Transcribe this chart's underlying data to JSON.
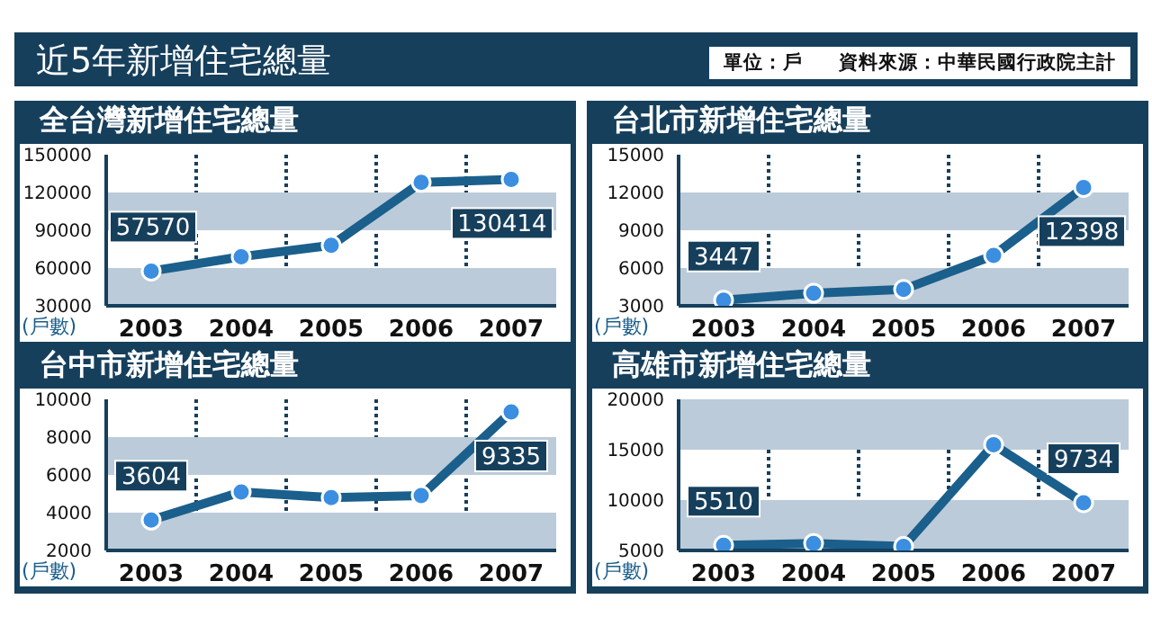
{
  "chart_data": [
    {
      "type": "other",
      "title": "近5年新增住宅總量",
      "annotations": [
        "單位：戶",
        "資料來源：中華民國行政院主計"
      ]
    },
    {
      "type": "line",
      "title": "全台灣新增住宅總量",
      "ylabel": "(戶數)",
      "categories": [
        "2003",
        "2004",
        "2005",
        "2006",
        "2007"
      ],
      "series": [
        {
          "color": "#1b5f8c",
          "values": [
            57570,
            69000,
            78000,
            128000,
            130414
          ],
          "value_labels": [
            "57570",
            null,
            null,
            null,
            "130414"
          ]
        }
      ],
      "ylim": [
        30000,
        150000
      ],
      "yticks": [
        30000,
        60000,
        90000,
        120000,
        150000
      ],
      "grid": "x",
      "marker": "circle",
      "legend": false,
      "bands": [
        {
          "axis": "y",
          "from": 30000,
          "to": 60000,
          "color": "#bccbd9"
        },
        {
          "axis": "y",
          "from": 90000,
          "to": 120000,
          "color": "#bccbd9"
        }
      ]
    },
    {
      "type": "line",
      "title": "台北市新增住宅總量",
      "ylabel": "(戶數)",
      "categories": [
        "2003",
        "2004",
        "2005",
        "2006",
        "2007"
      ],
      "series": [
        {
          "color": "#1b5f8c",
          "values": [
            3447,
            4000,
            4300,
            7000,
            12398
          ],
          "value_labels": [
            "3447",
            null,
            null,
            null,
            "12398"
          ]
        }
      ],
      "ylim": [
        3000,
        15000
      ],
      "yticks": [
        3000,
        6000,
        9000,
        12000,
        15000
      ],
      "grid": "x",
      "marker": "circle",
      "legend": false,
      "bands": [
        {
          "axis": "y",
          "from": 3000,
          "to": 6000,
          "color": "#bccbd9"
        },
        {
          "axis": "y",
          "from": 9000,
          "to": 12000,
          "color": "#bccbd9"
        }
      ]
    },
    {
      "type": "line",
      "title": "台中市新增住宅總量",
      "ylabel": "(戶數)",
      "categories": [
        "2003",
        "2004",
        "2005",
        "2006",
        "2007"
      ],
      "series": [
        {
          "color": "#1b5f8c",
          "values": [
            3604,
            5100,
            4800,
            4900,
            9335
          ],
          "value_labels": [
            "3604",
            null,
            null,
            null,
            "9335"
          ]
        }
      ],
      "ylim": [
        2000,
        10000
      ],
      "yticks": [
        2000,
        4000,
        6000,
        8000,
        10000
      ],
      "grid": "x",
      "marker": "circle",
      "legend": false,
      "bands": [
        {
          "axis": "y",
          "from": 2000,
          "to": 4000,
          "color": "#bccbd9"
        },
        {
          "axis": "y",
          "from": 6000,
          "to": 8000,
          "color": "#bccbd9"
        }
      ]
    },
    {
      "type": "line",
      "title": "高雄市新增住宅總量",
      "ylabel": "(戶數)",
      "categories": [
        "2003",
        "2004",
        "2005",
        "2006",
        "2007"
      ],
      "series": [
        {
          "color": "#1b5f8c",
          "values": [
            5510,
            5700,
            5400,
            15500,
            9734
          ],
          "value_labels": [
            "5510",
            null,
            null,
            null,
            "9734"
          ]
        }
      ],
      "ylim": [
        5000,
        20000
      ],
      "yticks": [
        5000,
        10000,
        15000,
        20000
      ],
      "grid": "x",
      "marker": "circle",
      "legend": false,
      "bands": [
        {
          "axis": "y",
          "from": 5000,
          "to": 10000,
          "color": "#bccbd9"
        },
        {
          "axis": "y",
          "from": 15000,
          "to": 20000,
          "color": "#bccbd9"
        }
      ]
    }
  ]
}
